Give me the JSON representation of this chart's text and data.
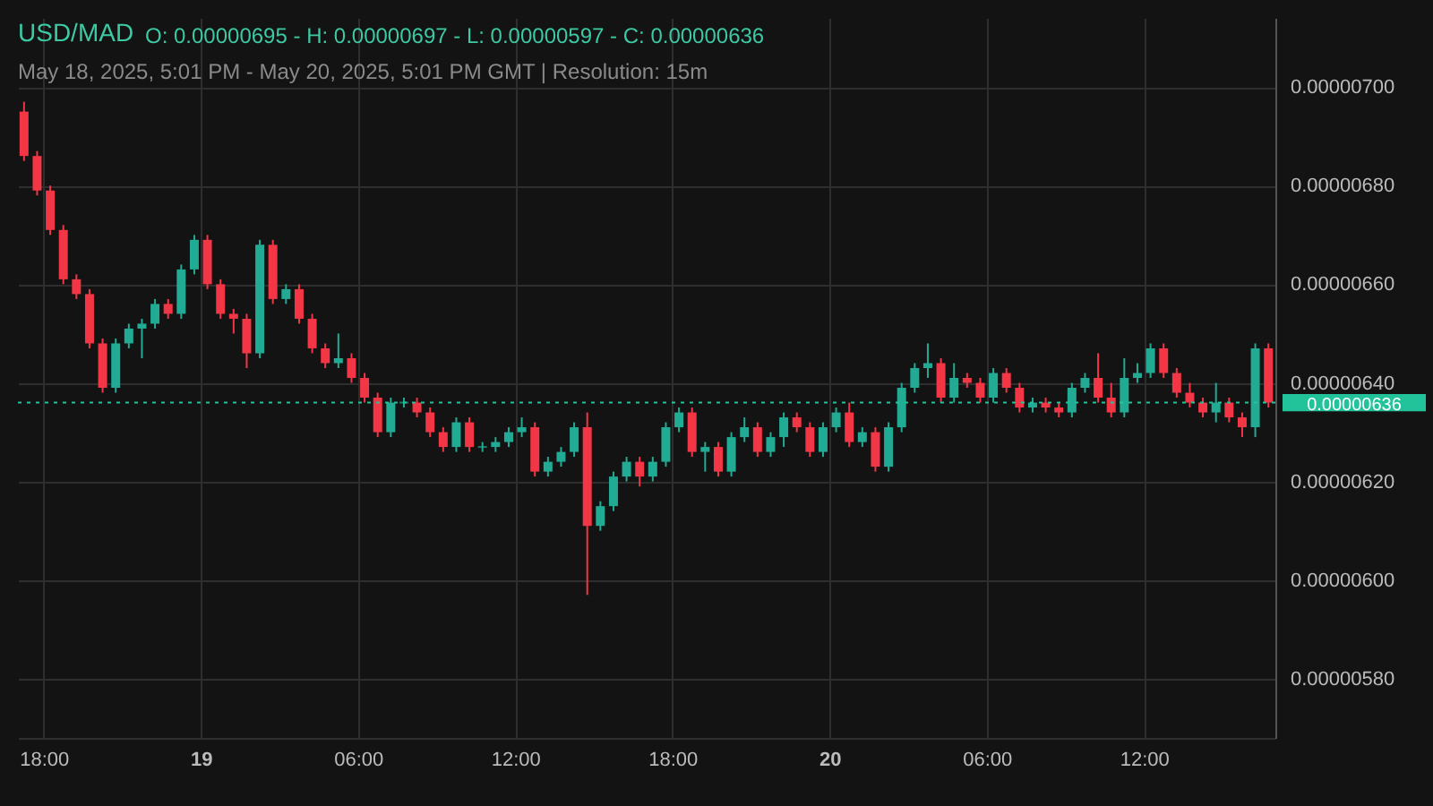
{
  "chart_data": {
    "type": "candlestick",
    "title": "USD/MAD",
    "subtitle": "May 18, 2025, 5:01 PM - May 20, 2025, 5:01 PM GMT   |   Resolution: 15m",
    "annotations": [
      "O: 0.00000695 - H: 0.00000697 - L: 0.00000597 - C: 0.00000636"
    ],
    "x": [
      "2025-05-18T17:15",
      "2025-05-18T17:45",
      "2025-05-18T18:15",
      "2025-05-18T18:45",
      "2025-05-18T19:15",
      "2025-05-18T19:45",
      "2025-05-18T20:15",
      "2025-05-18T20:45",
      "2025-05-18T21:15",
      "2025-05-18T21:45",
      "2025-05-18T22:15",
      "2025-05-18T22:45",
      "2025-05-18T23:15",
      "2025-05-18T23:45",
      "2025-05-19T00:15",
      "2025-05-19T00:45",
      "2025-05-19T01:15",
      "2025-05-19T01:45",
      "2025-05-19T02:15",
      "2025-05-19T02:45",
      "2025-05-19T03:15",
      "2025-05-19T03:45",
      "2025-05-19T04:15",
      "2025-05-19T04:45",
      "2025-05-19T05:15",
      "2025-05-19T05:45",
      "2025-05-19T06:15",
      "2025-05-19T06:45",
      "2025-05-19T07:15",
      "2025-05-19T07:45",
      "2025-05-19T08:15",
      "2025-05-19T08:45",
      "2025-05-19T09:15",
      "2025-05-19T09:45",
      "2025-05-19T10:15",
      "2025-05-19T10:45",
      "2025-05-19T11:15",
      "2025-05-19T11:45",
      "2025-05-19T12:15",
      "2025-05-19T12:45",
      "2025-05-19T13:15",
      "2025-05-19T13:45",
      "2025-05-19T14:15",
      "2025-05-19T14:45",
      "2025-05-19T15:15",
      "2025-05-19T15:45",
      "2025-05-19T16:15",
      "2025-05-19T16:45",
      "2025-05-19T17:15",
      "2025-05-19T17:45",
      "2025-05-19T18:15",
      "2025-05-19T18:45",
      "2025-05-19T19:15",
      "2025-05-19T19:45",
      "2025-05-19T20:15",
      "2025-05-19T20:45",
      "2025-05-19T21:15",
      "2025-05-19T21:45",
      "2025-05-19T22:15",
      "2025-05-19T22:45",
      "2025-05-19T23:15",
      "2025-05-19T23:45",
      "2025-05-20T00:15",
      "2025-05-20T00:45",
      "2025-05-20T01:15",
      "2025-05-20T01:45",
      "2025-05-20T02:15",
      "2025-05-20T02:45",
      "2025-05-20T03:15",
      "2025-05-20T03:45",
      "2025-05-20T04:15",
      "2025-05-20T04:45",
      "2025-05-20T05:15",
      "2025-05-20T05:45",
      "2025-05-20T06:15",
      "2025-05-20T06:45",
      "2025-05-20T07:15",
      "2025-05-20T07:45",
      "2025-05-20T08:15",
      "2025-05-20T08:45",
      "2025-05-20T09:15",
      "2025-05-20T09:45",
      "2025-05-20T10:15",
      "2025-05-20T10:45",
      "2025-05-20T11:15",
      "2025-05-20T11:45",
      "2025-05-20T12:15",
      "2025-05-20T12:45",
      "2025-05-20T13:15",
      "2025-05-20T13:45",
      "2025-05-20T14:15",
      "2025-05-20T14:45",
      "2025-05-20T15:15",
      "2025-05-20T15:45",
      "2025-05-20T16:15",
      "2025-05-20T16:45"
    ],
    "ohlc": [
      [
        6.95e-06,
        6.97e-06,
        6.85e-06,
        6.86e-06
      ],
      [
        6.86e-06,
        6.87e-06,
        6.78e-06,
        6.79e-06
      ],
      [
        6.79e-06,
        6.8e-06,
        6.7e-06,
        6.71e-06
      ],
      [
        6.71e-06,
        6.72e-06,
        6.6e-06,
        6.61e-06
      ],
      [
        6.61e-06,
        6.62e-06,
        6.57e-06,
        6.58e-06
      ],
      [
        6.58e-06,
        6.59e-06,
        6.47e-06,
        6.48e-06
      ],
      [
        6.48e-06,
        6.49e-06,
        6.38e-06,
        6.39e-06
      ],
      [
        6.39e-06,
        6.49e-06,
        6.38e-06,
        6.48e-06
      ],
      [
        6.48e-06,
        6.52e-06,
        6.47e-06,
        6.51e-06
      ],
      [
        6.51e-06,
        6.53e-06,
        6.45e-06,
        6.52e-06
      ],
      [
        6.52e-06,
        6.57e-06,
        6.51e-06,
        6.56e-06
      ],
      [
        6.56e-06,
        6.57e-06,
        6.53e-06,
        6.54e-06
      ],
      [
        6.54e-06,
        6.64e-06,
        6.53e-06,
        6.63e-06
      ],
      [
        6.63e-06,
        6.7e-06,
        6.62e-06,
        6.69e-06
      ],
      [
        6.69e-06,
        6.7e-06,
        6.59e-06,
        6.6e-06
      ],
      [
        6.6e-06,
        6.61e-06,
        6.53e-06,
        6.54e-06
      ],
      [
        6.54e-06,
        6.55e-06,
        6.5e-06,
        6.53e-06
      ],
      [
        6.53e-06,
        6.54e-06,
        6.43e-06,
        6.46e-06
      ],
      [
        6.46e-06,
        6.69e-06,
        6.45e-06,
        6.68e-06
      ],
      [
        6.68e-06,
        6.69e-06,
        6.56e-06,
        6.57e-06
      ],
      [
        6.57e-06,
        6.6e-06,
        6.56e-06,
        6.59e-06
      ],
      [
        6.59e-06,
        6.6e-06,
        6.52e-06,
        6.53e-06
      ],
      [
        6.53e-06,
        6.54e-06,
        6.46e-06,
        6.47e-06
      ],
      [
        6.47e-06,
        6.48e-06,
        6.43e-06,
        6.44e-06
      ],
      [
        6.44e-06,
        6.5e-06,
        6.43e-06,
        6.45e-06
      ],
      [
        6.45e-06,
        6.46e-06,
        6.4e-06,
        6.41e-06
      ],
      [
        6.41e-06,
        6.42e-06,
        6.36e-06,
        6.37e-06
      ],
      [
        6.37e-06,
        6.38e-06,
        6.29e-06,
        6.3e-06
      ],
      [
        6.3e-06,
        6.37e-06,
        6.29e-06,
        6.36e-06
      ],
      [
        6.36e-06,
        6.37e-06,
        6.35e-06,
        6.36e-06
      ],
      [
        6.36e-06,
        6.37e-06,
        6.33e-06,
        6.34e-06
      ],
      [
        6.34e-06,
        6.35e-06,
        6.29e-06,
        6.3e-06
      ],
      [
        6.3e-06,
        6.31e-06,
        6.26e-06,
        6.27e-06
      ],
      [
        6.27e-06,
        6.33e-06,
        6.26e-06,
        6.32e-06
      ],
      [
        6.32e-06,
        6.33e-06,
        6.26e-06,
        6.27e-06
      ],
      [
        6.27e-06,
        6.28e-06,
        6.26e-06,
        6.27e-06
      ],
      [
        6.27e-06,
        6.29e-06,
        6.26e-06,
        6.28e-06
      ],
      [
        6.28e-06,
        6.31e-06,
        6.27e-06,
        6.3e-06
      ],
      [
        6.3e-06,
        6.33e-06,
        6.29e-06,
        6.31e-06
      ],
      [
        6.31e-06,
        6.32e-06,
        6.21e-06,
        6.22e-06
      ],
      [
        6.22e-06,
        6.25e-06,
        6.21e-06,
        6.24e-06
      ],
      [
        6.24e-06,
        6.27e-06,
        6.23e-06,
        6.26e-06
      ],
      [
        6.26e-06,
        6.32e-06,
        6.25e-06,
        6.31e-06
      ],
      [
        6.31e-06,
        6.34e-06,
        5.97e-06,
        6.11e-06
      ],
      [
        6.11e-06,
        6.16e-06,
        6.1e-06,
        6.15e-06
      ],
      [
        6.15e-06,
        6.22e-06,
        6.14e-06,
        6.21e-06
      ],
      [
        6.21e-06,
        6.25e-06,
        6.2e-06,
        6.24e-06
      ],
      [
        6.24e-06,
        6.25e-06,
        6.19e-06,
        6.21e-06
      ],
      [
        6.21e-06,
        6.25e-06,
        6.2e-06,
        6.24e-06
      ],
      [
        6.24e-06,
        6.32e-06,
        6.23e-06,
        6.31e-06
      ],
      [
        6.31e-06,
        6.35e-06,
        6.3e-06,
        6.34e-06
      ],
      [
        6.34e-06,
        6.35e-06,
        6.25e-06,
        6.26e-06
      ],
      [
        6.26e-06,
        6.28e-06,
        6.22e-06,
        6.27e-06
      ],
      [
        6.27e-06,
        6.28e-06,
        6.21e-06,
        6.22e-06
      ],
      [
        6.22e-06,
        6.3e-06,
        6.21e-06,
        6.29e-06
      ],
      [
        6.29e-06,
        6.33e-06,
        6.28e-06,
        6.31e-06
      ],
      [
        6.31e-06,
        6.32e-06,
        6.25e-06,
        6.26e-06
      ],
      [
        6.26e-06,
        6.3e-06,
        6.25e-06,
        6.29e-06
      ],
      [
        6.29e-06,
        6.34e-06,
        6.27e-06,
        6.33e-06
      ],
      [
        6.33e-06,
        6.34e-06,
        6.3e-06,
        6.31e-06
      ],
      [
        6.31e-06,
        6.32e-06,
        6.25e-06,
        6.26e-06
      ],
      [
        6.26e-06,
        6.32e-06,
        6.25e-06,
        6.31e-06
      ],
      [
        6.31e-06,
        6.35e-06,
        6.3e-06,
        6.34e-06
      ],
      [
        6.34e-06,
        6.36e-06,
        6.27e-06,
        6.28e-06
      ],
      [
        6.28e-06,
        6.31e-06,
        6.27e-06,
        6.3e-06
      ],
      [
        6.3e-06,
        6.31e-06,
        6.22e-06,
        6.23e-06
      ],
      [
        6.23e-06,
        6.32e-06,
        6.22e-06,
        6.31e-06
      ],
      [
        6.31e-06,
        6.4e-06,
        6.3e-06,
        6.39e-06
      ],
      [
        6.39e-06,
        6.44e-06,
        6.38e-06,
        6.43e-06
      ],
      [
        6.43e-06,
        6.48e-06,
        6.41e-06,
        6.44e-06
      ],
      [
        6.44e-06,
        6.45e-06,
        6.36e-06,
        6.37e-06
      ],
      [
        6.37e-06,
        6.44e-06,
        6.36e-06,
        6.41e-06
      ],
      [
        6.41e-06,
        6.42e-06,
        6.39e-06,
        6.4e-06
      ],
      [
        6.4e-06,
        6.41e-06,
        6.36e-06,
        6.37e-06
      ],
      [
        6.37e-06,
        6.43e-06,
        6.36e-06,
        6.42e-06
      ],
      [
        6.42e-06,
        6.43e-06,
        6.38e-06,
        6.39e-06
      ],
      [
        6.39e-06,
        6.4e-06,
        6.34e-06,
        6.35e-06
      ],
      [
        6.35e-06,
        6.37e-06,
        6.34e-06,
        6.36e-06
      ],
      [
        6.36e-06,
        6.37e-06,
        6.34e-06,
        6.35e-06
      ],
      [
        6.35e-06,
        6.36e-06,
        6.33e-06,
        6.34e-06
      ],
      [
        6.34e-06,
        6.4e-06,
        6.33e-06,
        6.39e-06
      ],
      [
        6.39e-06,
        6.42e-06,
        6.38e-06,
        6.41e-06
      ],
      [
        6.41e-06,
        6.46e-06,
        6.36e-06,
        6.37e-06
      ],
      [
        6.37e-06,
        6.4e-06,
        6.33e-06,
        6.34e-06
      ],
      [
        6.34e-06,
        6.45e-06,
        6.33e-06,
        6.41e-06
      ],
      [
        6.41e-06,
        6.44e-06,
        6.4e-06,
        6.42e-06
      ],
      [
        6.42e-06,
        6.48e-06,
        6.41e-06,
        6.47e-06
      ],
      [
        6.47e-06,
        6.48e-06,
        6.41e-06,
        6.42e-06
      ],
      [
        6.42e-06,
        6.43e-06,
        6.37e-06,
        6.38e-06
      ],
      [
        6.38e-06,
        6.4e-06,
        6.35e-06,
        6.36e-06
      ],
      [
        6.36e-06,
        6.37e-06,
        6.33e-06,
        6.34e-06
      ],
      [
        6.34e-06,
        6.4e-06,
        6.32e-06,
        6.36e-06
      ],
      [
        6.36e-06,
        6.37e-06,
        6.32e-06,
        6.33e-06
      ],
      [
        6.33e-06,
        6.34e-06,
        6.29e-06,
        6.31e-06
      ],
      [
        6.31e-06,
        6.48e-06,
        6.29e-06,
        6.47e-06
      ],
      [
        6.47e-06,
        6.48e-06,
        6.35e-06,
        6.36e-06
      ]
    ],
    "colors": [
      "#f23645",
      "#f23645",
      "#f23645",
      "#f23645",
      "#f23645",
      "#f23645",
      "#f23645",
      "#22ab94",
      "#22ab94",
      "#22ab94",
      "#22ab94",
      "#f23645",
      "#22ab94",
      "#22ab94",
      "#f23645",
      "#f23645",
      "#f23645",
      "#f23645",
      "#22ab94",
      "#f23645",
      "#22ab94",
      "#f23645",
      "#f23645",
      "#f23645",
      "#22ab94",
      "#f23645",
      "#f23645",
      "#f23645",
      "#22ab94",
      "#22ab94",
      "#f23645",
      "#f23645",
      "#f23645",
      "#22ab94",
      "#f23645",
      "#22ab94",
      "#22ab94",
      "#22ab94",
      "#22ab94",
      "#f23645",
      "#22ab94",
      "#22ab94",
      "#22ab94",
      "#f23645",
      "#22ab94",
      "#22ab94",
      "#22ab94",
      "#f23645",
      "#22ab94",
      "#22ab94",
      "#22ab94",
      "#f23645",
      "#22ab94",
      "#f23645",
      "#22ab94",
      "#22ab94",
      "#f23645",
      "#22ab94",
      "#22ab94",
      "#f23645",
      "#f23645",
      "#22ab94",
      "#22ab94",
      "#f23645",
      "#22ab94",
      "#f23645",
      "#22ab94",
      "#22ab94",
      "#22ab94",
      "#22ab94",
      "#f23645",
      "#22ab94",
      "#f23645",
      "#f23645",
      "#22ab94",
      "#f23645",
      "#f23645",
      "#22ab94",
      "#f23645",
      "#f23645",
      "#22ab94",
      "#22ab94",
      "#f23645",
      "#f23645",
      "#22ab94",
      "#22ab94",
      "#22ab94",
      "#f23645",
      "#f23645",
      "#f23645",
      "#f23645",
      "#22ab94",
      "#f23645",
      "#f23645",
      "#22ab94",
      "#f23645"
    ],
    "xlim": [
      "2025-05-18T17:01",
      "2025-05-20T17:01"
    ],
    "xticks": [
      {
        "value": "2025-05-18T18:00",
        "label": "18:00"
      },
      {
        "value": "2025-05-19T00:00",
        "label": "19"
      },
      {
        "value": "2025-05-19T06:00",
        "label": "06:00"
      },
      {
        "value": "2025-05-19T12:00",
        "label": "12:00"
      },
      {
        "value": "2025-05-19T18:00",
        "label": "18:00"
      },
      {
        "value": "2025-05-20T00:00",
        "label": "20"
      },
      {
        "value": "2025-05-20T06:00",
        "label": "06:00"
      },
      {
        "value": "2025-05-20T12:00",
        "label": "12:00"
      }
    ],
    "ylim": [
      5.68e-06,
      7.14e-06
    ],
    "yticks": [
      {
        "value": 5.8e-06,
        "label": "0.00000580"
      },
      {
        "value": 6e-06,
        "label": "0.00000600"
      },
      {
        "value": 6.2e-06,
        "label": "0.00000620"
      },
      {
        "value": 6.4e-06,
        "label": "0.00000640"
      },
      {
        "value": 6.6e-06,
        "label": "0.00000660"
      },
      {
        "value": 6.8e-06,
        "label": "0.00000680"
      },
      {
        "value": 7e-06,
        "label": "0.00000700"
      }
    ],
    "ref_lines": [
      {
        "axis": "y",
        "value": 6.36e-06,
        "label": "0.00000636",
        "color": "#22c39a",
        "line_style": "dotted"
      }
    ],
    "grid": true
  }
}
